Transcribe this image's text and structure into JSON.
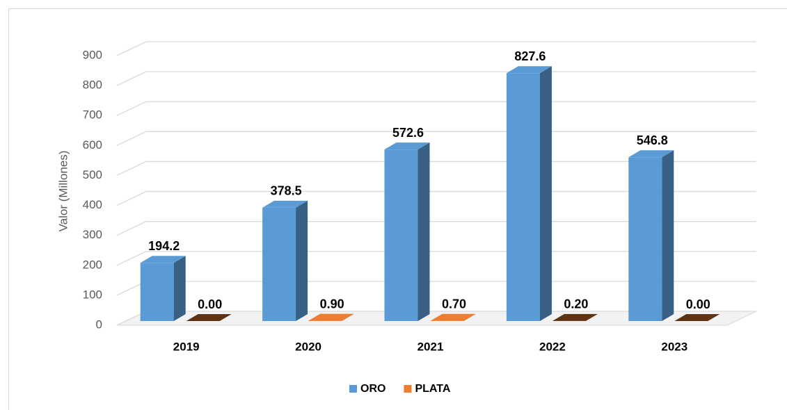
{
  "chart_data": {
    "type": "bar3d",
    "y_label": "Valor (Millones)",
    "categories": [
      "2019",
      "2020",
      "2021",
      "2022",
      "2023"
    ],
    "series": [
      {
        "name": "ORO",
        "color": "#5b9bd5",
        "values": [
          194.2,
          378.5,
          572.6,
          827.6,
          546.8
        ]
      },
      {
        "name": "PLATA",
        "color": "#ed7d31",
        "values": [
          0.0,
          0.9,
          0.7,
          0.2,
          0.0
        ],
        "value_labels": [
          "0.00",
          "0.90",
          "0.70",
          "0.20",
          "0.00"
        ]
      }
    ],
    "ylim": [
      0,
      900
    ],
    "yticks": [
      0,
      100,
      200,
      300,
      400,
      500,
      600,
      700,
      800,
      900
    ],
    "grid": true,
    "legend": "bottom"
  }
}
